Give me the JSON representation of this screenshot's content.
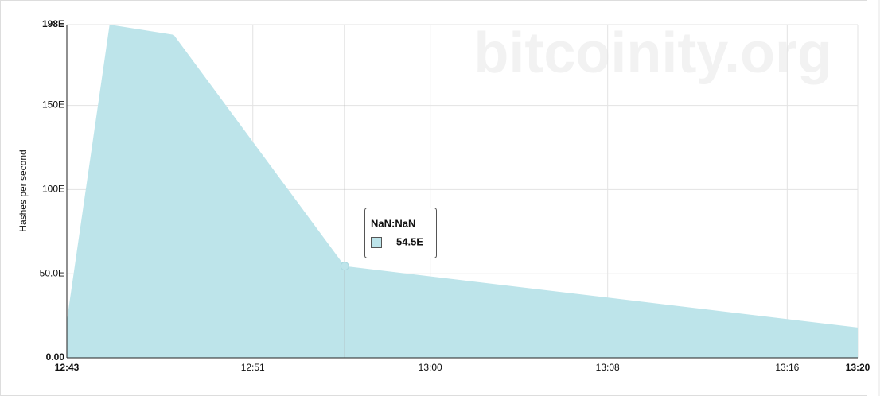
{
  "chart_data": {
    "type": "area",
    "watermark": "bitcoinity.org",
    "ylabel": "Hashes per second",
    "x": [
      763,
      765,
      768,
      776,
      800
    ],
    "values": [
      22,
      198,
      192,
      54.5,
      18
    ],
    "color": "#bde4ea",
    "xlim": [
      763,
      800
    ],
    "xticks": [
      {
        "value": 763,
        "label": "12:43"
      },
      {
        "value": 771.7,
        "label": "12:51"
      },
      {
        "value": 780,
        "label": "13:00"
      },
      {
        "value": 788.3,
        "label": "13:08"
      },
      {
        "value": 796.7,
        "label": "13:16"
      },
      {
        "value": 800,
        "label": "13:20"
      }
    ],
    "ylim": [
      0,
      198
    ],
    "yticks": [
      {
        "value": 0,
        "label": "0.00"
      },
      {
        "value": 50,
        "label": "50.0E"
      },
      {
        "value": 100,
        "label": "100E"
      },
      {
        "value": 150,
        "label": "150E"
      },
      {
        "value": 198,
        "label": "198E"
      }
    ],
    "grid": true,
    "hover_index": 3,
    "tooltip": {
      "title": "NaN:NaN",
      "label": "54.5E"
    }
  }
}
